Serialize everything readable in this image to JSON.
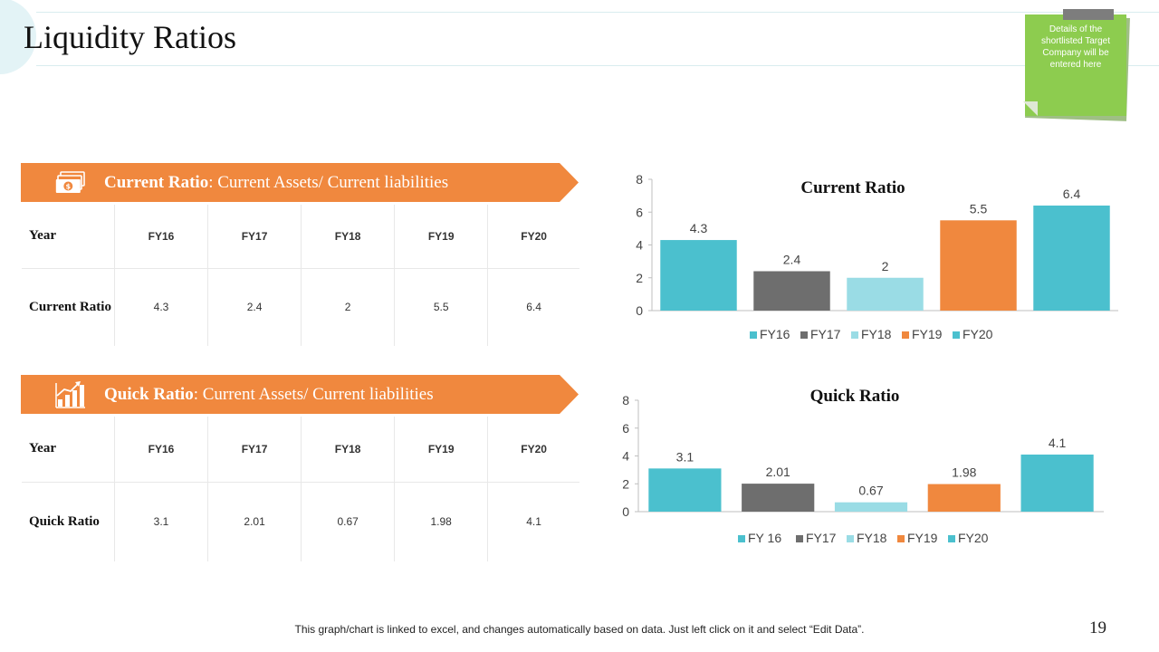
{
  "page": {
    "title": "Liquidity Ratios",
    "note": "Details of the shortlisted Target Company will be entered here",
    "footer": "This graph/chart is linked to excel, and changes automatically based on data. Just left click on it and select “Edit Data”.",
    "page_number": "19"
  },
  "colors": {
    "banner": "#F0883E",
    "teal": "#4BC0CE",
    "gray": "#6E6E6E",
    "light_teal": "#9ADCE5",
    "orange": "#F0883E",
    "note_green": "#8DCC4F"
  },
  "current_section": {
    "banner_bold": "Current Ratio",
    "banner_rest": ": Current Assets/ Current liabilities",
    "icon": "money-icon",
    "table": {
      "header_label": "Year",
      "row_label": "Current Ratio",
      "years": [
        "FY16",
        "FY17",
        "FY18",
        "FY19",
        "FY20"
      ],
      "values": [
        "4.3",
        "2.4",
        "2",
        "5.5",
        "6.4"
      ]
    }
  },
  "quick_section": {
    "banner_bold": "Quick Ratio",
    "banner_rest": ": Current Assets/ Current liabilities",
    "icon": "growth-chart-icon",
    "table": {
      "header_label": "Year",
      "row_label": "Quick Ratio",
      "years": [
        "FY16",
        "FY17",
        "FY18",
        "FY19",
        "FY20"
      ],
      "values": [
        "3.1",
        "2.01",
        "0.67",
        "1.98",
        "4.1"
      ]
    }
  },
  "chart_data": [
    {
      "type": "bar",
      "title": "Current Ratio",
      "categories": [
        "FY16",
        "FY17",
        "FY18",
        "FY19",
        "FY20"
      ],
      "values": [
        4.3,
        2.4,
        2,
        5.5,
        6.4
      ],
      "data_labels": [
        "4.3",
        "2.4",
        "2",
        "5.5",
        "6.4"
      ],
      "colors": [
        "#4BC0CE",
        "#6E6E6E",
        "#9ADCE5",
        "#F0883E",
        "#4BC0CE"
      ],
      "ylim": [
        0,
        8
      ],
      "yticks": [
        0,
        2,
        4,
        6,
        8
      ],
      "legend": [
        "FY16",
        "FY17",
        "FY18",
        "FY19",
        "FY20"
      ],
      "legend_position": "bottom",
      "grid": false
    },
    {
      "type": "bar",
      "title": "Quick Ratio",
      "categories": [
        "FY 16",
        "FY17",
        "FY18",
        "FY19",
        "FY20"
      ],
      "values": [
        3.1,
        2.01,
        0.67,
        1.98,
        4.1
      ],
      "data_labels": [
        "3.1",
        "2.01",
        "0.67",
        "1.98",
        "4.1"
      ],
      "colors": [
        "#4BC0CE",
        "#6E6E6E",
        "#9ADCE5",
        "#F0883E",
        "#4BC0CE"
      ],
      "ylim": [
        0,
        8
      ],
      "yticks": [
        0,
        2,
        4,
        6,
        8
      ],
      "legend": [
        "FY 16",
        "FY17",
        "FY18",
        "FY19",
        "FY20"
      ],
      "legend_position": "bottom",
      "grid": false
    }
  ]
}
